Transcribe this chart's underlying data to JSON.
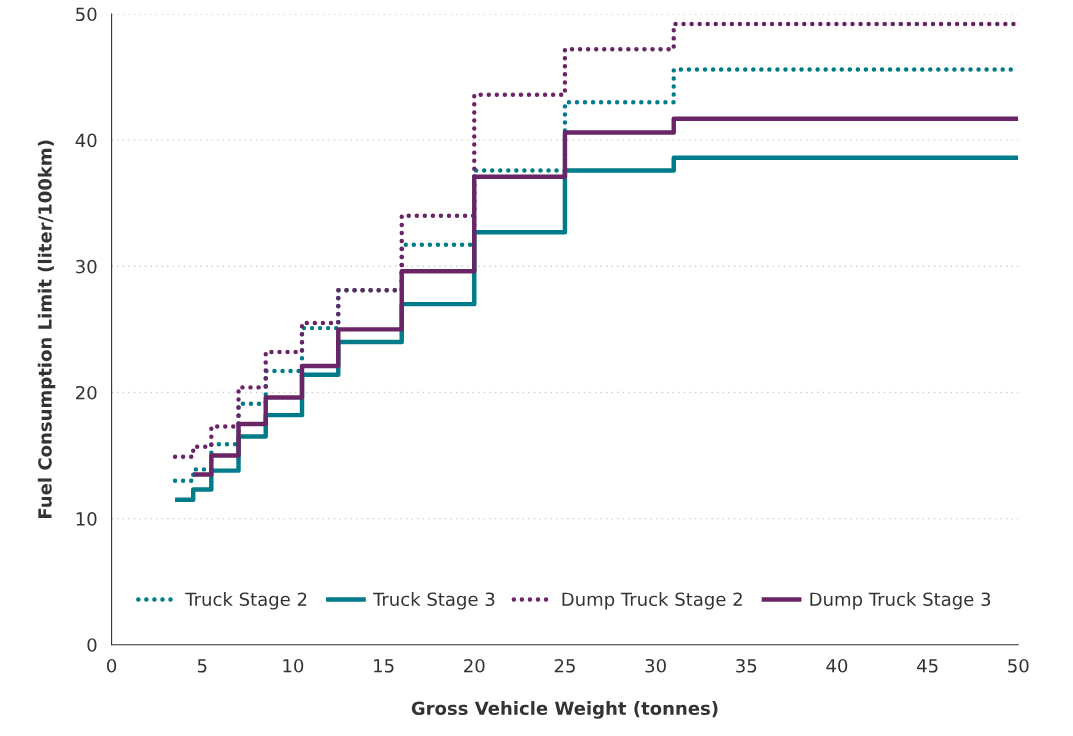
{
  "chart_data": {
    "type": "step",
    "xlabel": "Gross Vehicle Weight (tonnes)",
    "ylabel": "Fuel Consumption Limit (liter/100km)",
    "x": [
      3.5,
      4.5,
      5.5,
      7,
      8.5,
      10.5,
      12.5,
      16,
      20,
      25,
      31,
      50
    ],
    "series": [
      {
        "name": "Truck Stage 2",
        "color": "#007b8a",
        "line_style": "dotted",
        "values": [
          13.0,
          13.9,
          15.9,
          19.1,
          21.7,
          25.1,
          28.1,
          31.7,
          37.6,
          43.0,
          45.6,
          45.6
        ]
      },
      {
        "name": "Truck Stage 3",
        "color": "#007b8a",
        "line_style": "solid",
        "values": [
          11.5,
          12.3,
          13.8,
          16.5,
          18.2,
          21.4,
          24.0,
          27.0,
          32.7,
          37.6,
          38.6,
          38.6
        ]
      },
      {
        "name": "Dump Truck Stage 2",
        "color": "#6a2566",
        "line_style": "dotted",
        "values": [
          14.9,
          15.7,
          17.3,
          20.4,
          23.2,
          25.5,
          28.1,
          34.0,
          43.6,
          47.2,
          49.2,
          49.2
        ]
      },
      {
        "name": "Dump Truck Stage 3",
        "color": "#6a2566",
        "line_style": "solid",
        "values": [
          null,
          13.5,
          15.0,
          17.5,
          19.6,
          22.1,
          25.0,
          29.6,
          37.1,
          40.6,
          41.7,
          41.7
        ]
      }
    ],
    "xlim": [
      0,
      50
    ],
    "xticks": [
      0,
      5,
      10,
      15,
      20,
      25,
      30,
      35,
      40,
      45,
      50
    ],
    "ylim": [
      0,
      50
    ],
    "yticks": [
      0,
      10,
      20,
      30,
      40,
      50
    ],
    "grid": "y",
    "legend": "bottom"
  }
}
